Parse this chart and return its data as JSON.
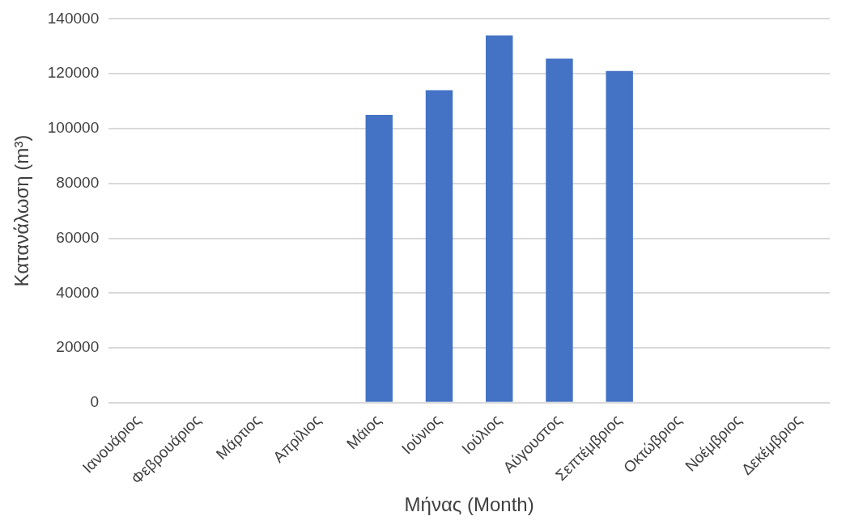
{
  "chart_data": {
    "type": "bar",
    "xlabel": "Μήνας (Month)",
    "ylabel": "Κατανάλωση (m³)",
    "categories": [
      "Ιανουάριος",
      "Φεβρουάριος",
      "Μάρτιος",
      "Απρίλιος",
      "Μάιος",
      "Ιούνιος",
      "Ιούλιος",
      "Αύγουστος",
      "Σεπτέμβριος",
      "Οκτώβριος",
      "Νοέμβριος",
      "Δεκέμβριος"
    ],
    "values": [
      0,
      0,
      0,
      0,
      105000,
      114000,
      134000,
      125500,
      121000,
      0,
      0,
      0
    ],
    "color": "#4472c4",
    "ylim": [
      0,
      140000
    ],
    "yticks": [
      0,
      20000,
      40000,
      60000,
      80000,
      100000,
      120000,
      140000
    ],
    "grid": "y"
  }
}
